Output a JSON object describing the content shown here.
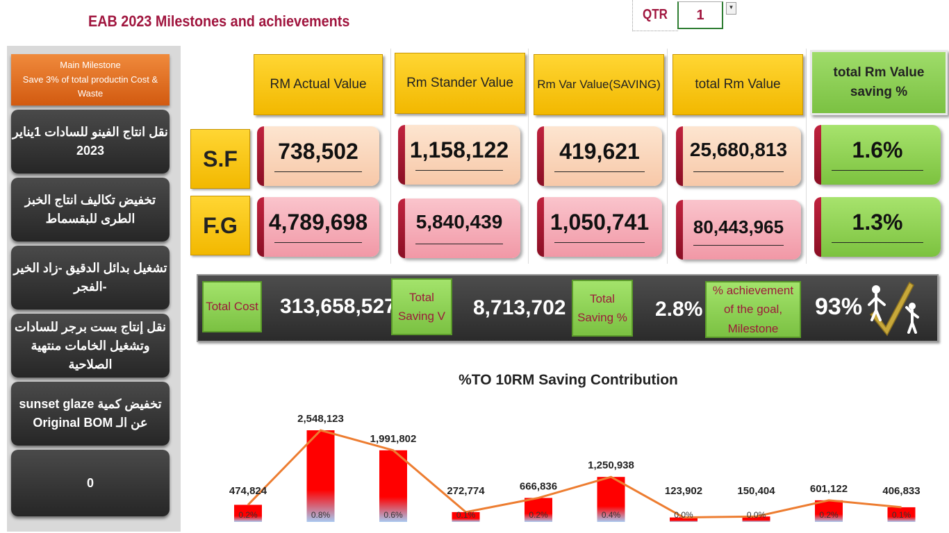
{
  "title": "EAB  2023 Milestones and achievements",
  "qtr": {
    "label": "QTR",
    "value": "1"
  },
  "sidebar": {
    "main_line1": "Main Milestone",
    "main_line2": "Save 3% of total productin Cost & Waste",
    "items": [
      "نقل انتاج الفينو للسادات 1يناير 2023",
      "تخفيض تكاليف انتاج الخبز الطرى للبقسماط",
      "تشغيل بدائل الدقيق -زاد الخير -الفجر",
      "نقل إنتاج بست برجر للسادات وتشغيل الخامات منتهية الصلاحية",
      "تخفيض كمية sunset glaze عن الـ Original BOM",
      "0"
    ]
  },
  "headers": [
    "RM Actual Value",
    "Rm Stander Value",
    "Rm Var Value(SAVING)",
    "total Rm Value",
    "total Rm  Value saving %"
  ],
  "rows": [
    {
      "label": "S.F",
      "values": [
        "738,502",
        "1,158,122",
        "419,621",
        "25,680,813"
      ],
      "pct": "1.6%"
    },
    {
      "label": "F.G",
      "values": [
        "4,789,698",
        "5,840,439",
        "1,050,741",
        "80,443,965"
      ],
      "pct": "1.3%"
    }
  ],
  "summary": {
    "total_cost_label": "Total Cost",
    "total_cost": "313,658,527",
    "total_saving_v_label": "Total Saving  V",
    "total_saving_v": "8,713,702",
    "total_saving_pct_label": "Total Saving %",
    "total_saving_pct": "2.8%",
    "achievement_label": "% achievement of the goal, Milestone",
    "achievement": "93%",
    "icon": "checkmark-people-icon"
  },
  "chart_data": {
    "type": "bar",
    "title": "%TO 10RM Saving Contribution",
    "values": [
      474824,
      2548123,
      1991802,
      272774,
      666836,
      1250938,
      123902,
      150404,
      601122,
      406833
    ],
    "value_labels": [
      "474,824",
      "2,548,123",
      "1,991,802",
      "272,774",
      "666,836",
      "1,250,938",
      "123,902",
      "150,404",
      "601,122",
      "406,833"
    ],
    "pct_labels": [
      "0.2%",
      "0.8%",
      "0.6%",
      "0.1%",
      "0.2%",
      "0.4%",
      "0.0%",
      "0.0%",
      "0.2%",
      "0.1%"
    ],
    "colors": {
      "bar": "#ff0000",
      "line": "#ed7d31"
    }
  }
}
